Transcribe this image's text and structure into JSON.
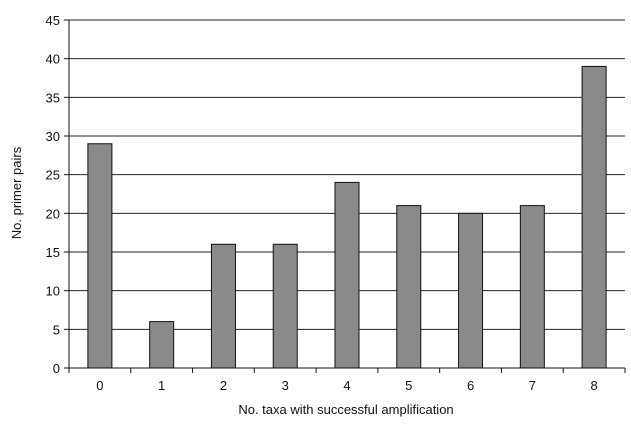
{
  "chart_data": {
    "type": "bar",
    "title": "",
    "xlabel": "No. taxa with successful amplification",
    "ylabel": "No. primer pairs",
    "categories": [
      "0",
      "1",
      "2",
      "3",
      "4",
      "5",
      "6",
      "7",
      "8"
    ],
    "values": [
      29,
      6,
      16,
      16,
      24,
      21,
      20,
      21,
      39
    ],
    "ylim": [
      0,
      45
    ],
    "yticks": [
      0,
      5,
      10,
      15,
      20,
      25,
      30,
      35,
      40,
      45
    ],
    "grid": true,
    "legend": "none",
    "bar_color": "#8a8a8a",
    "bar_edge_color": "#111111",
    "grid_color": "#222222"
  }
}
